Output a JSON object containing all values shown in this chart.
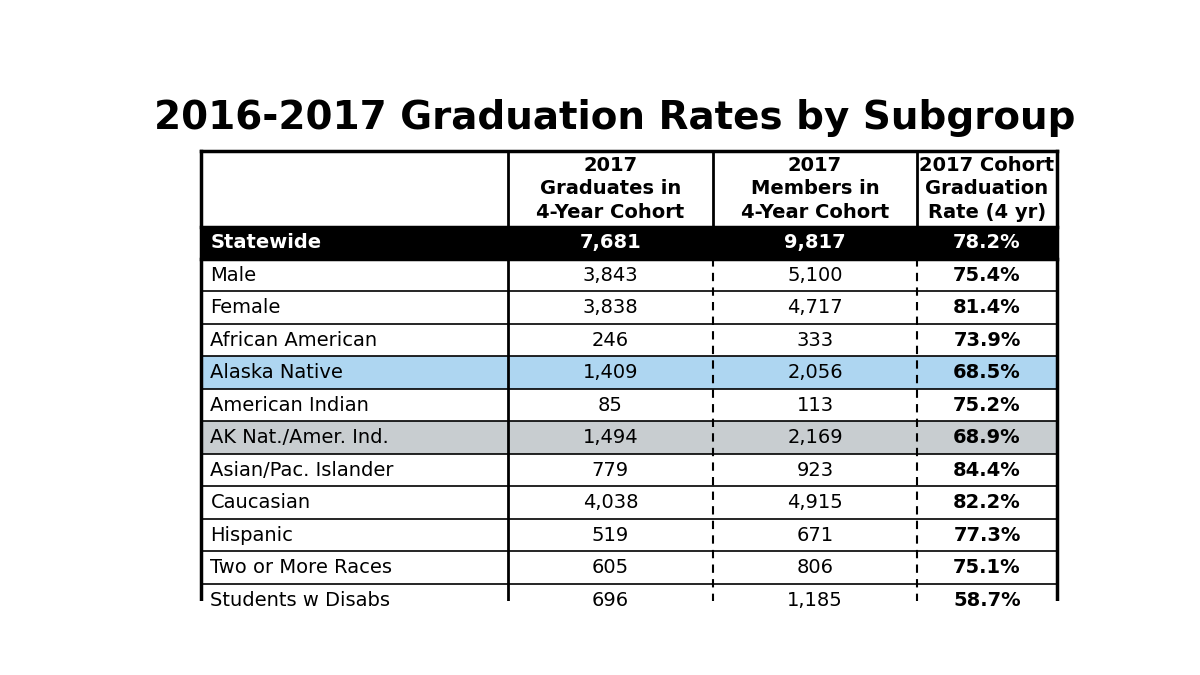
{
  "title": "2016-2017 Graduation Rates by Subgroup",
  "col_headers": [
    "",
    "2017\nGraduates in\n4-Year Cohort",
    "2017\nMembers in\n4-Year Cohort",
    "2017 Cohort\nGraduation\nRate (4 yr)"
  ],
  "rows": [
    {
      "label": "Statewide",
      "col1": "7,681",
      "col2": "9,817",
      "col3": "78.2%",
      "style": "statewide"
    },
    {
      "label": "Male",
      "col1": "3,843",
      "col2": "5,100",
      "col3": "75.4%",
      "style": "normal"
    },
    {
      "label": "Female",
      "col1": "3,838",
      "col2": "4,717",
      "col3": "81.4%",
      "style": "normal"
    },
    {
      "label": "African American",
      "col1": "246",
      "col2": "333",
      "col3": "73.9%",
      "style": "normal"
    },
    {
      "label": "Alaska Native",
      "col1": "1,409",
      "col2": "2,056",
      "col3": "68.5%",
      "style": "highlight"
    },
    {
      "label": "American Indian",
      "col1": "85",
      "col2": "113",
      "col3": "75.2%",
      "style": "normal"
    },
    {
      "label": "AK Nat./Amer. Ind.",
      "col1": "1,494",
      "col2": "2,169",
      "col3": "68.9%",
      "style": "gray"
    },
    {
      "label": "Asian/Pac. Islander",
      "col1": "779",
      "col2": "923",
      "col3": "84.4%",
      "style": "normal"
    },
    {
      "label": "Caucasian",
      "col1": "4,038",
      "col2": "4,915",
      "col3": "82.2%",
      "style": "normal"
    },
    {
      "label": "Hispanic",
      "col1": "519",
      "col2": "671",
      "col3": "77.3%",
      "style": "normal"
    },
    {
      "label": "Two or More Races",
      "col1": "605",
      "col2": "806",
      "col3": "75.1%",
      "style": "normal"
    },
    {
      "label": "Students w Disabs",
      "col1": "696",
      "col2": "1,185",
      "col3": "58.7%",
      "style": "partial_cut"
    }
  ],
  "bg_color": "#ffffff",
  "statewide_bg": "#000000",
  "statewide_fg": "#ffffff",
  "highlight_bg": "#aed6f1",
  "gray_bg": "#c8cdd0",
  "normal_bg": "#ffffff",
  "header_bg": "#ffffff",
  "border_color": "#000000",
  "title_fontsize": 28,
  "header_fontsize": 14,
  "cell_fontsize": 14
}
